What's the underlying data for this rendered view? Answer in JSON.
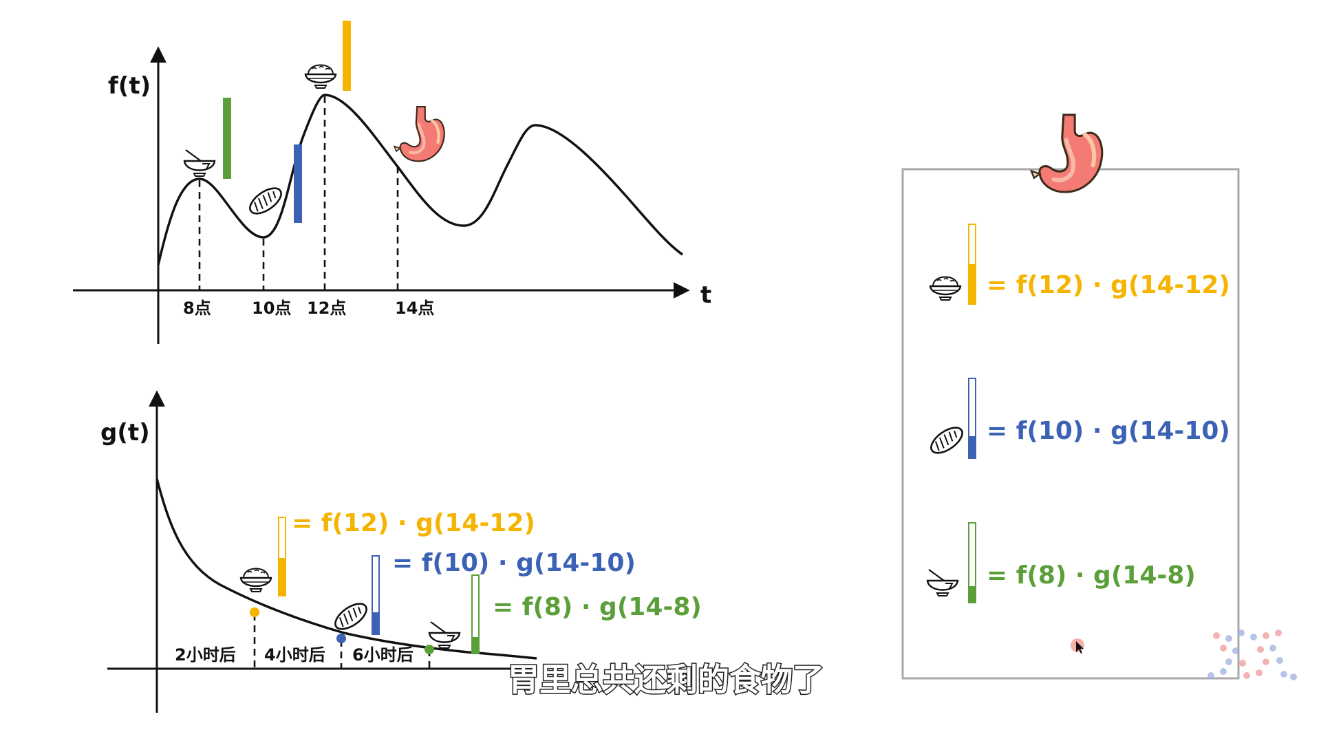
{
  "colors": {
    "rice": "#f4b400",
    "bread": "#3b62b4",
    "noodles": "#5b9f3a",
    "axis": "#111111",
    "box_border": "#a8a8a8",
    "stomach": "#f47a74"
  },
  "top_chart": {
    "y_label": "f(t)",
    "x_label": "t",
    "ticks": [
      "8点",
      "10点",
      "12点",
      "14点"
    ]
  },
  "bottom_chart": {
    "y_label": "g(t)",
    "intervals": [
      "2小时后",
      "4小时后",
      "6小时后"
    ],
    "formulas": {
      "rice": "= f(12) · g(14-12)",
      "bread": "= f(10) · g(14-10)",
      "noodles": "= f(8) · g(14-8)"
    }
  },
  "stomach_box": {
    "formulas": {
      "rice": "= f(12) · g(14-12)",
      "bread": "= f(10) · g(14-10)",
      "noodles": "= f(8) · g(14-8)"
    }
  },
  "icons": {
    "rice": "rice-bowl-icon",
    "bread": "bread-icon",
    "noodles": "noodle-bowl-icon",
    "stomach": "stomach-icon",
    "cursor": "cursor-icon",
    "watermark": "dot-logo-icon"
  },
  "subtitle": "胃里总共还剩的食物了"
}
